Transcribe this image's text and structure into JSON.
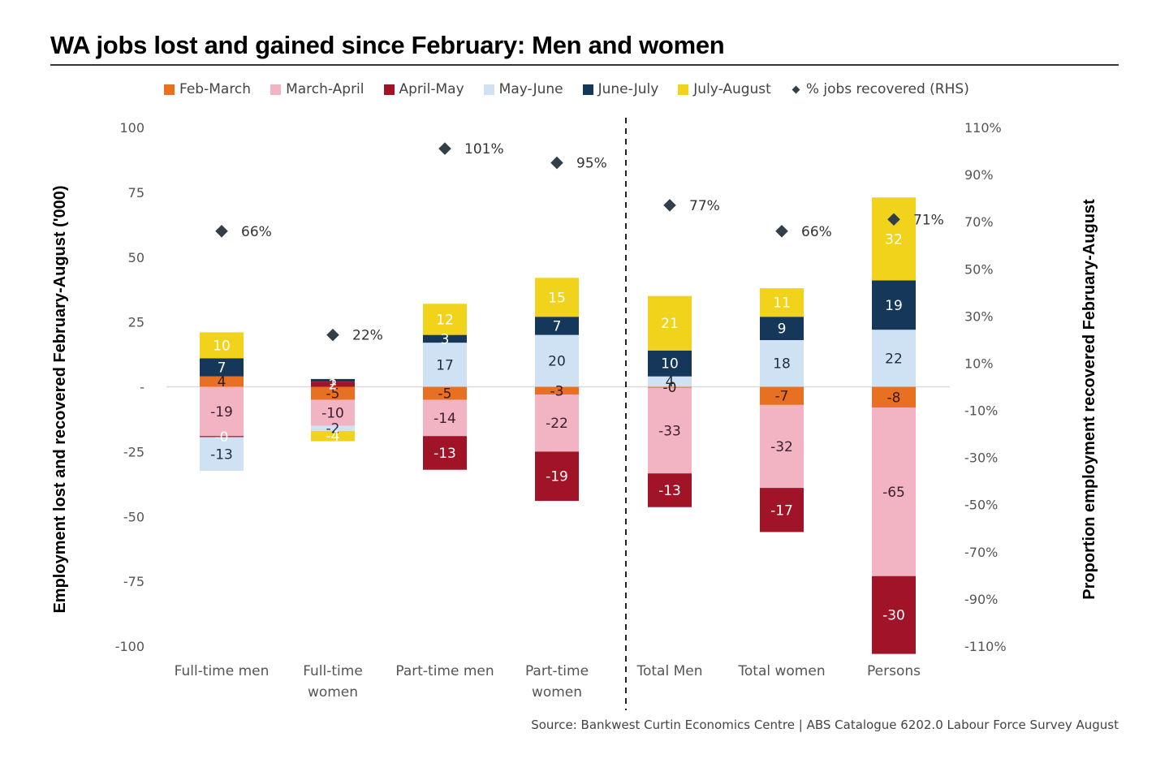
{
  "title": "WA jobs lost and gained since February: Men and women",
  "source": "Source: Bankwest Curtin Economics Centre | ABS Catalogue 6202.0 Labour Force Survey August",
  "chart_data": {
    "type": "bar",
    "stacked": true,
    "title": "WA jobs lost and gained since February: Men and women",
    "categories": [
      [
        "Full-time men"
      ],
      [
        "Full-time",
        "women"
      ],
      [
        "Part-time men"
      ],
      [
        "Part-time",
        "women"
      ],
      [
        "Total Men"
      ],
      [
        "Total women"
      ],
      [
        "Persons"
      ]
    ],
    "category_names": [
      "Full-time men",
      "Full-time women",
      "Part-time men",
      "Part-time women",
      "Total Men",
      "Total women",
      "Persons"
    ],
    "ylabel": "Employment lost and recovered February-August ('000)",
    "y2label": "Proportion employment recovered February-August",
    "ylim": [
      -100,
      100
    ],
    "yticks": [
      100,
      75,
      50,
      25,
      0,
      -25,
      -50,
      -75,
      -100
    ],
    "ytick_labels": [
      "100",
      "75",
      "50",
      "25",
      "-",
      "-25",
      "-50",
      "-75",
      "-100"
    ],
    "y2lim": [
      -110,
      110
    ],
    "y2ticks": [
      110,
      90,
      70,
      50,
      30,
      10,
      -10,
      -30,
      -50,
      -70,
      -90,
      -110
    ],
    "y2tick_labels": [
      "110%",
      "90%",
      "70%",
      "50%",
      "30%",
      "10%",
      "-10%",
      "-30%",
      "-50%",
      "-70%",
      "-90%",
      "-110%"
    ],
    "legend_position": "top",
    "divider_after_category": 3,
    "series": [
      {
        "name": "Feb-March",
        "color": "#e87022",
        "label_color": "#3a1a10",
        "values": [
          4,
          -5,
          -5,
          -3,
          -0.4,
          -7,
          -8
        ],
        "labels": [
          "4",
          "-5",
          "-5",
          "-3",
          "-0",
          "-7",
          "-8"
        ]
      },
      {
        "name": "March-April",
        "color": "#f2b3c2",
        "label_color": "#3a2030",
        "values": [
          -19,
          -10,
          -14,
          -22,
          -33,
          -32,
          -65
        ],
        "labels": [
          "-19",
          "-10",
          "-14",
          "-22",
          "-33",
          "-32",
          "-65"
        ]
      },
      {
        "name": "April-May",
        "color": "#a11327",
        "label_color": "#ffffff",
        "values": [
          -0.4,
          2,
          -13,
          -19,
          -13,
          -17,
          -30
        ],
        "labels": [
          "-0",
          "2",
          "-13",
          "-19",
          "-13",
          "-17",
          "-30"
        ]
      },
      {
        "name": "May-June",
        "color": "#cfe2f3",
        "label_color": "#1e2e40",
        "values": [
          -13,
          -2,
          17,
          20,
          4,
          18,
          22
        ],
        "labels": [
          "-13",
          "-2",
          "17",
          "20",
          "4",
          "18",
          "22"
        ]
      },
      {
        "name": "June-July",
        "color": "#14375a",
        "label_color": "#ffffff",
        "values": [
          7,
          1,
          3,
          7,
          10,
          9,
          19
        ],
        "labels": [
          "7",
          "1",
          "3",
          "7",
          "10",
          "9",
          "19"
        ]
      },
      {
        "name": "July-August",
        "color": "#f2d31b",
        "label_color": "#ffffff",
        "values": [
          10,
          -4,
          12,
          15,
          21,
          11,
          32
        ],
        "labels": [
          "10",
          "-4",
          "12",
          "15",
          "21",
          "11",
          "32"
        ]
      }
    ],
    "rhs_series": {
      "name": "% jobs recovered (RHS)",
      "type": "scatter",
      "marker": "diamond",
      "color": "#333f48",
      "values": [
        66,
        22,
        101,
        95,
        77,
        66,
        71
      ],
      "labels": [
        "66%",
        "22%",
        "101%",
        "95%",
        "77%",
        "66%",
        "71%"
      ]
    }
  }
}
